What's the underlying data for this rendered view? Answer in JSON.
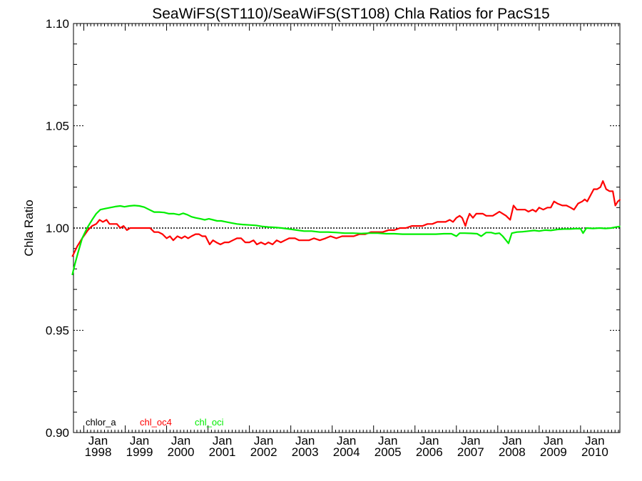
{
  "chart_data": {
    "type": "line",
    "title": "SeaWiFS(ST110)/SeaWiFS(ST108)  Chla Ratios for PacS15",
    "xlabel": "",
    "ylabel": "Chla Ratio",
    "xlim": [
      1997.75,
      2010.95
    ],
    "ylim": [
      0.9,
      1.1
    ],
    "yticks": [
      0.9,
      0.95,
      1.0,
      1.05,
      1.1
    ],
    "ytick_labels": [
      "0.90",
      "0.95",
      "1.00",
      "1.05",
      "1.10"
    ],
    "xticks": [
      {
        "x": 1998,
        "month": "Jan",
        "year": "1998"
      },
      {
        "x": 1999,
        "month": "Jan",
        "year": "1999"
      },
      {
        "x": 2000,
        "month": "Jan",
        "year": "2000"
      },
      {
        "x": 2001,
        "month": "Jan",
        "year": "2001"
      },
      {
        "x": 2002,
        "month": "Jan",
        "year": "2002"
      },
      {
        "x": 2003,
        "month": "Jan",
        "year": "2003"
      },
      {
        "x": 2004,
        "month": "Jan",
        "year": "2004"
      },
      {
        "x": 2005,
        "month": "Jan",
        "year": "2005"
      },
      {
        "x": 2006,
        "month": "Jan",
        "year": "2006"
      },
      {
        "x": 2007,
        "month": "Jan",
        "year": "2007"
      },
      {
        "x": 2008,
        "month": "Jan",
        "year": "2008"
      },
      {
        "x": 2009,
        "month": "Jan",
        "year": "2009"
      },
      {
        "x": 2010,
        "month": "Jan",
        "year": "2010"
      }
    ],
    "reference_line": {
      "y": 1.0,
      "style": "dotted",
      "color": "#000000"
    },
    "grid": false,
    "legend_position": "bottom-left",
    "series": [
      {
        "name": "chlor_a",
        "color": "#000000",
        "points": [
          [
            1997.75,
            1.0
          ],
          [
            2010.95,
            1.0
          ]
        ]
      },
      {
        "name": "chl_oc4",
        "color": "#ff0000",
        "points": [
          [
            1997.72,
            0.986
          ],
          [
            1997.84,
            0.991
          ],
          [
            1997.96,
            0.995
          ],
          [
            1998.1,
            0.999
          ],
          [
            1998.2,
            1.001
          ],
          [
            1998.3,
            1.002
          ],
          [
            1998.38,
            1.004
          ],
          [
            1998.46,
            1.003
          ],
          [
            1998.55,
            1.004
          ],
          [
            1998.62,
            1.002
          ],
          [
            1998.7,
            1.002
          ],
          [
            1998.8,
            1.002
          ],
          [
            1998.88,
            1.0
          ],
          [
            1998.96,
            1.001
          ],
          [
            1999.04,
            0.999
          ],
          [
            1999.12,
            1.0
          ],
          [
            1999.2,
            1.0
          ],
          [
            1999.3,
            1.0
          ],
          [
            1999.4,
            1.0
          ],
          [
            1999.5,
            1.0
          ],
          [
            1999.6,
            1.0
          ],
          [
            1999.7,
            0.998
          ],
          [
            1999.8,
            0.998
          ],
          [
            1999.9,
            0.997
          ],
          [
            2000.0,
            0.995
          ],
          [
            2000.08,
            0.996
          ],
          [
            2000.16,
            0.994
          ],
          [
            2000.26,
            0.996
          ],
          [
            2000.36,
            0.995
          ],
          [
            2000.44,
            0.996
          ],
          [
            2000.52,
            0.995
          ],
          [
            2000.6,
            0.996
          ],
          [
            2000.7,
            0.997
          ],
          [
            2000.78,
            0.997
          ],
          [
            2000.86,
            0.996
          ],
          [
            2000.94,
            0.996
          ],
          [
            2001.04,
            0.992
          ],
          [
            2001.12,
            0.994
          ],
          [
            2001.2,
            0.993
          ],
          [
            2001.3,
            0.992
          ],
          [
            2001.4,
            0.993
          ],
          [
            2001.5,
            0.993
          ],
          [
            2001.6,
            0.994
          ],
          [
            2001.7,
            0.995
          ],
          [
            2001.8,
            0.995
          ],
          [
            2001.9,
            0.993
          ],
          [
            2002.0,
            0.993
          ],
          [
            2002.1,
            0.994
          ],
          [
            2002.18,
            0.992
          ],
          [
            2002.28,
            0.993
          ],
          [
            2002.38,
            0.992
          ],
          [
            2002.46,
            0.993
          ],
          [
            2002.56,
            0.992
          ],
          [
            2002.66,
            0.994
          ],
          [
            2002.76,
            0.993
          ],
          [
            2002.86,
            0.994
          ],
          [
            2002.96,
            0.995
          ],
          [
            2003.1,
            0.995
          ],
          [
            2003.2,
            0.994
          ],
          [
            2003.32,
            0.994
          ],
          [
            2003.44,
            0.994
          ],
          [
            2003.56,
            0.995
          ],
          [
            2003.7,
            0.994
          ],
          [
            2003.84,
            0.995
          ],
          [
            2003.96,
            0.996
          ],
          [
            2004.1,
            0.995
          ],
          [
            2004.24,
            0.996
          ],
          [
            2004.38,
            0.996
          ],
          [
            2004.52,
            0.996
          ],
          [
            2004.66,
            0.997
          ],
          [
            2004.8,
            0.997
          ],
          [
            2004.94,
            0.998
          ],
          [
            2005.08,
            0.998
          ],
          [
            2005.22,
            0.998
          ],
          [
            2005.36,
            0.999
          ],
          [
            2005.5,
            0.999
          ],
          [
            2005.64,
            1.0
          ],
          [
            2005.78,
            1.0
          ],
          [
            2005.92,
            1.001
          ],
          [
            2006.06,
            1.001
          ],
          [
            2006.18,
            1.001
          ],
          [
            2006.3,
            1.002
          ],
          [
            2006.42,
            1.002
          ],
          [
            2006.54,
            1.003
          ],
          [
            2006.64,
            1.003
          ],
          [
            2006.74,
            1.003
          ],
          [
            2006.84,
            1.004
          ],
          [
            2006.92,
            1.003
          ],
          [
            2007.0,
            1.005
          ],
          [
            2007.08,
            1.006
          ],
          [
            2007.14,
            1.005
          ],
          [
            2007.18,
            1.003
          ],
          [
            2007.22,
            1.001
          ],
          [
            2007.26,
            1.004
          ],
          [
            2007.32,
            1.007
          ],
          [
            2007.4,
            1.005
          ],
          [
            2007.48,
            1.007
          ],
          [
            2007.56,
            1.007
          ],
          [
            2007.64,
            1.007
          ],
          [
            2007.72,
            1.006
          ],
          [
            2007.8,
            1.006
          ],
          [
            2007.88,
            1.006
          ],
          [
            2007.96,
            1.007
          ],
          [
            2008.04,
            1.008
          ],
          [
            2008.12,
            1.007
          ],
          [
            2008.2,
            1.006
          ],
          [
            2008.3,
            1.004
          ],
          [
            2008.38,
            1.011
          ],
          [
            2008.46,
            1.009
          ],
          [
            2008.56,
            1.009
          ],
          [
            2008.66,
            1.009
          ],
          [
            2008.74,
            1.008
          ],
          [
            2008.84,
            1.009
          ],
          [
            2008.92,
            1.008
          ],
          [
            2009.0,
            1.01
          ],
          [
            2009.1,
            1.009
          ],
          [
            2009.2,
            1.01
          ],
          [
            2009.28,
            1.01
          ],
          [
            2009.36,
            1.013
          ],
          [
            2009.44,
            1.012
          ],
          [
            2009.56,
            1.011
          ],
          [
            2009.66,
            1.011
          ],
          [
            2009.76,
            1.01
          ],
          [
            2009.84,
            1.009
          ],
          [
            2009.94,
            1.012
          ],
          [
            2010.04,
            1.013
          ],
          [
            2010.1,
            1.014
          ],
          [
            2010.16,
            1.013
          ],
          [
            2010.24,
            1.016
          ],
          [
            2010.32,
            1.019
          ],
          [
            2010.4,
            1.019
          ],
          [
            2010.48,
            1.02
          ],
          [
            2010.54,
            1.023
          ],
          [
            2010.62,
            1.019
          ],
          [
            2010.7,
            1.018
          ],
          [
            2010.78,
            1.018
          ],
          [
            2010.84,
            1.011
          ],
          [
            2010.9,
            1.013
          ],
          [
            2010.96,
            1.014
          ]
        ]
      },
      {
        "name": "chl_oci",
        "color": "#00ee00",
        "points": [
          [
            1997.72,
            0.977
          ],
          [
            1997.78,
            0.982
          ],
          [
            1997.86,
            0.988
          ],
          [
            1997.96,
            0.995
          ],
          [
            1998.08,
            1.0
          ],
          [
            1998.2,
            1.004
          ],
          [
            1998.3,
            1.007
          ],
          [
            1998.4,
            1.009
          ],
          [
            1998.52,
            1.0095
          ],
          [
            1998.64,
            1.01
          ],
          [
            1998.76,
            1.0105
          ],
          [
            1998.88,
            1.0108
          ],
          [
            1998.98,
            1.0104
          ],
          [
            1999.1,
            1.0108
          ],
          [
            1999.22,
            1.011
          ],
          [
            1999.34,
            1.0108
          ],
          [
            1999.46,
            1.0102
          ],
          [
            1999.58,
            1.009
          ],
          [
            1999.7,
            1.0078
          ],
          [
            1999.82,
            1.0078
          ],
          [
            1999.94,
            1.0076
          ],
          [
            2000.06,
            1.007
          ],
          [
            2000.18,
            1.007
          ],
          [
            2000.3,
            1.0065
          ],
          [
            2000.4,
            1.0072
          ],
          [
            2000.5,
            1.0065
          ],
          [
            2000.6,
            1.0055
          ],
          [
            2000.7,
            1.005
          ],
          [
            2000.82,
            1.0045
          ],
          [
            2000.92,
            1.004
          ],
          [
            2001.02,
            1.0045
          ],
          [
            2001.12,
            1.004
          ],
          [
            2001.22,
            1.0035
          ],
          [
            2001.32,
            1.0035
          ],
          [
            2001.44,
            1.003
          ],
          [
            2001.56,
            1.0025
          ],
          [
            2001.7,
            1.002
          ],
          [
            2001.84,
            1.0017
          ],
          [
            2002.0,
            1.0015
          ],
          [
            2002.16,
            1.0013
          ],
          [
            2002.3,
            1.0008
          ],
          [
            2002.46,
            1.0005
          ],
          [
            2002.62,
            1.0003
          ],
          [
            2002.78,
            1.0
          ],
          [
            2002.96,
            0.9995
          ],
          [
            2003.14,
            0.999
          ],
          [
            2003.32,
            0.9985
          ],
          [
            2003.5,
            0.9985
          ],
          [
            2003.7,
            0.998
          ],
          [
            2003.9,
            0.998
          ],
          [
            2004.1,
            0.9978
          ],
          [
            2004.3,
            0.9975
          ],
          [
            2004.5,
            0.9975
          ],
          [
            2004.7,
            0.9973
          ],
          [
            2004.9,
            0.9975
          ],
          [
            2005.1,
            0.9975
          ],
          [
            2005.3,
            0.9972
          ],
          [
            2005.5,
            0.9972
          ],
          [
            2005.7,
            0.997
          ],
          [
            2005.9,
            0.997
          ],
          [
            2006.1,
            0.997
          ],
          [
            2006.3,
            0.997
          ],
          [
            2006.5,
            0.997
          ],
          [
            2006.7,
            0.9972
          ],
          [
            2006.88,
            0.9972
          ],
          [
            2007.0,
            0.996
          ],
          [
            2007.08,
            0.9975
          ],
          [
            2007.2,
            0.9975
          ],
          [
            2007.36,
            0.9974
          ],
          [
            2007.5,
            0.9972
          ],
          [
            2007.6,
            0.996
          ],
          [
            2007.72,
            0.9978
          ],
          [
            2007.84,
            0.9978
          ],
          [
            2007.94,
            0.9972
          ],
          [
            2008.04,
            0.9975
          ],
          [
            2008.12,
            0.996
          ],
          [
            2008.2,
            0.994
          ],
          [
            2008.26,
            0.9925
          ],
          [
            2008.34,
            0.9975
          ],
          [
            2008.46,
            0.998
          ],
          [
            2008.6,
            0.9982
          ],
          [
            2008.74,
            0.9985
          ],
          [
            2008.88,
            0.9988
          ],
          [
            2009.0,
            0.9985
          ],
          [
            2009.14,
            0.999
          ],
          [
            2009.28,
            0.9988
          ],
          [
            2009.44,
            0.9993
          ],
          [
            2009.6,
            0.9995
          ],
          [
            2009.74,
            0.9995
          ],
          [
            2009.88,
            0.9997
          ],
          [
            2010.0,
            0.9997
          ],
          [
            2010.06,
            0.9975
          ],
          [
            2010.14,
            1.0
          ],
          [
            2010.3,
            0.9998
          ],
          [
            2010.46,
            1.0
          ],
          [
            2010.6,
            0.9998
          ],
          [
            2010.74,
            1.0
          ],
          [
            2010.86,
            1.0005
          ],
          [
            2010.96,
            1.0008
          ]
        ]
      }
    ]
  }
}
